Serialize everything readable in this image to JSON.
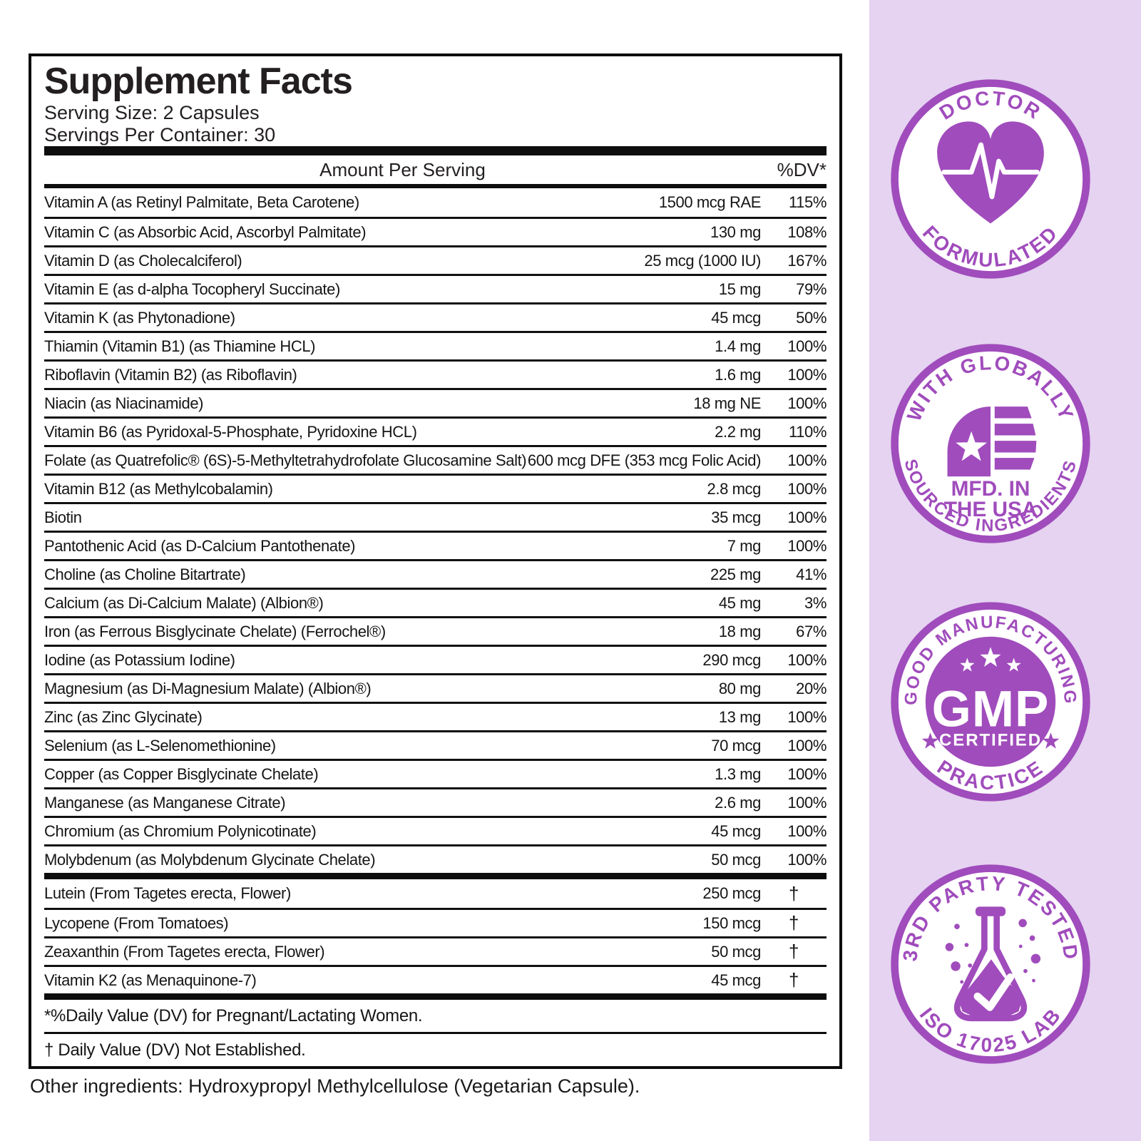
{
  "colors": {
    "accent_purple": "#A04CBC",
    "panel_lavender": "#E5D3F1",
    "ink": "#231f20"
  },
  "label": {
    "title": "Supplement Facts",
    "serving_size": "Serving Size: 2 Capsules",
    "servings_per_container": "Servings Per Container: 30",
    "header": {
      "amount": "Amount Per Serving",
      "dv": "%DV*"
    },
    "rows": [
      {
        "name": "Vitamin A (as Retinyl Palmitate, Beta Carotene)",
        "amount": "1500 mcg RAE",
        "dv": "115%"
      },
      {
        "name": "Vitamin C (as Absorbic Acid, Ascorbyl Palmitate)",
        "amount": "130 mg",
        "dv": "108%"
      },
      {
        "name": "Vitamin D (as Cholecalciferol)",
        "amount": "25 mcg (1000 IU)",
        "dv": "167%"
      },
      {
        "name": "Vitamin E (as d-alpha Tocopheryl Succinate)",
        "amount": "15 mg",
        "dv": "79%"
      },
      {
        "name": "Vitamin K (as Phytonadione)",
        "amount": "45 mcg",
        "dv": "50%"
      },
      {
        "name": "Thiamin (Vitamin B1) (as Thiamine HCL)",
        "amount": "1.4 mg",
        "dv": "100%"
      },
      {
        "name": "Riboflavin (Vitamin B2) (as Riboflavin)",
        "amount": "1.6 mg",
        "dv": "100%"
      },
      {
        "name": "Niacin (as Niacinamide)",
        "amount": "18 mg NE",
        "dv": "100%"
      },
      {
        "name": "Vitamin B6 (as Pyridoxal-5-Phosphate, Pyridoxine HCL)",
        "amount": "2.2 mg",
        "dv": "110%"
      },
      {
        "name": "Folate (as Quatrefolic® (6S)-5-Methyltetrahydrofolate Glucosamine Salt)",
        "amount": "600 mcg DFE (353 mcg Folic Acid)",
        "dv": "100%"
      },
      {
        "name": "Vitamin B12 (as Methylcobalamin)",
        "amount": "2.8 mcg",
        "dv": "100%"
      },
      {
        "name": "Biotin",
        "amount": "35 mcg",
        "dv": "100%"
      },
      {
        "name": "Pantothenic Acid (as D-Calcium Pantothenate)",
        "amount": "7 mg",
        "dv": "100%"
      },
      {
        "name": "Choline (as Choline Bitartrate)",
        "amount": "225 mg",
        "dv": "41%"
      },
      {
        "name": "Calcium (as Di-Calcium Malate) (Albion®)",
        "amount": "45 mg",
        "dv": "3%"
      },
      {
        "name": "Iron (as Ferrous Bisglycinate Chelate) (Ferrochel®)",
        "amount": "18 mg",
        "dv": "67%"
      },
      {
        "name": "Iodine (as Potassium Iodine)",
        "amount": "290 mcg",
        "dv": "100%"
      },
      {
        "name": "Magnesium (as Di-Magnesium Malate) (Albion®)",
        "amount": "80 mg",
        "dv": "20%"
      },
      {
        "name": "Zinc (as Zinc Glycinate)",
        "amount": "13 mg",
        "dv": "100%"
      },
      {
        "name": "Selenium (as L-Selenomethionine)",
        "amount": "70 mcg",
        "dv": "100%"
      },
      {
        "name": "Copper (as Copper Bisglycinate Chelate)",
        "amount": "1.3 mg",
        "dv": "100%"
      },
      {
        "name": "Manganese (as Manganese Citrate)",
        "amount": "2.6 mg",
        "dv": "100%"
      },
      {
        "name": "Chromium (as Chromium Polynicotinate)",
        "amount": "45 mcg",
        "dv": "100%"
      },
      {
        "name": "Molybdenum (as Molybdenum Glycinate Chelate)",
        "amount": "50 mcg",
        "dv": "100%"
      }
    ],
    "extra_rows": [
      {
        "name": "Lutein (From Tagetes erecta, Flower)",
        "amount": "250 mcg",
        "dv": "†"
      },
      {
        "name": "Lycopene (From Tomatoes)",
        "amount": "150 mcg",
        "dv": "†"
      },
      {
        "name": "Zeaxanthin (From Tagetes erecta, Flower)",
        "amount": "50 mcg",
        "dv": "†"
      },
      {
        "name": "Vitamin K2 (as Menaquinone-7)",
        "amount": "45 mcg",
        "dv": "†"
      }
    ],
    "footnotes": [
      "*%Daily Value (DV) for Pregnant/Lactating Women.",
      "† Daily Value (DV) Not Established."
    ],
    "other_ingredients": "Other ingredients: Hydroxypropyl Methylcellulose (Vegetarian Capsule)."
  },
  "badges": [
    {
      "top": "DOCTOR",
      "bottom": "FORMULATED",
      "icon": "heart-pulse-icon"
    },
    {
      "top": "WITH GLOBALLY",
      "bottom": "SOURCED INGREDIENTS",
      "line1": "MFD. IN",
      "line2": "THE USA",
      "icon": "usa-flag-icon"
    },
    {
      "top": "GOOD MANUFACTURING",
      "bottom": "PRACTICE",
      "center": "GMP",
      "sub": "CERTIFIED",
      "icon": "gmp-seal-icon"
    },
    {
      "top": "3RD PARTY TESTED",
      "bottom": "ISO 17025 LAB",
      "icon": "lab-flask-icon"
    }
  ]
}
